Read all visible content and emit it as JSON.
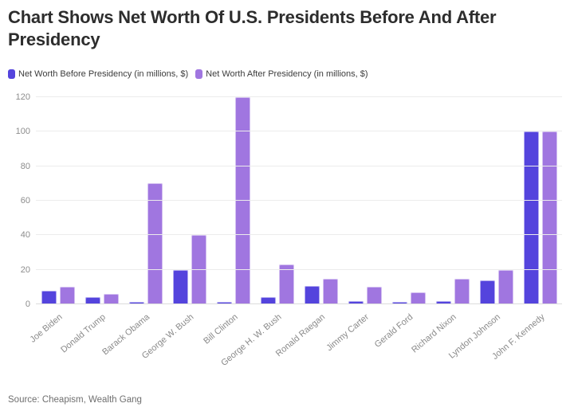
{
  "title": "Chart Shows Net Worth Of U.S. Presidents Before And After Presidency",
  "source": "Source: Cheapism, Wealth Gang",
  "colors": {
    "before_series": "#5444dd",
    "after_series": "#a076e0",
    "title_text": "#2d2d2d",
    "axis_text": "#8a8a8a",
    "gridline": "#ececec"
  },
  "chart_data": {
    "type": "bar",
    "title": "Chart Shows Net Worth Of U.S. Presidents Before And After Presidency",
    "categories": [
      "Joe Biden",
      "Donald Trump",
      "Barack Obama",
      "George W. Bush",
      "Bill Clinton",
      "George H. W. Bush",
      "Ronald Raegan",
      "Jimmy Carter",
      "Gerald Ford",
      "Richard Nixon",
      "Lyndon Johnson",
      "John F. Kennedy"
    ],
    "series": [
      {
        "name": "Net Worth Before Presidency (in millions, $)",
        "color": "#5444dd",
        "values": [
          8,
          4,
          1.3,
          20,
          1.3,
          4,
          10.5,
          2,
          1.3,
          2,
          14,
          100
        ]
      },
      {
        "name": "Net Worth After Presidency (in millions, $)",
        "color": "#a076e0",
        "values": [
          10,
          6,
          70,
          40,
          120,
          23,
          15,
          10,
          7,
          15,
          20,
          100
        ]
      }
    ],
    "xlabel": "",
    "ylabel": "",
    "ylim": [
      0,
      120
    ],
    "ytick_interval": 20,
    "yticks": [
      0,
      20,
      40,
      60,
      80,
      100,
      120
    ],
    "grid": true,
    "legend_position": "top"
  }
}
